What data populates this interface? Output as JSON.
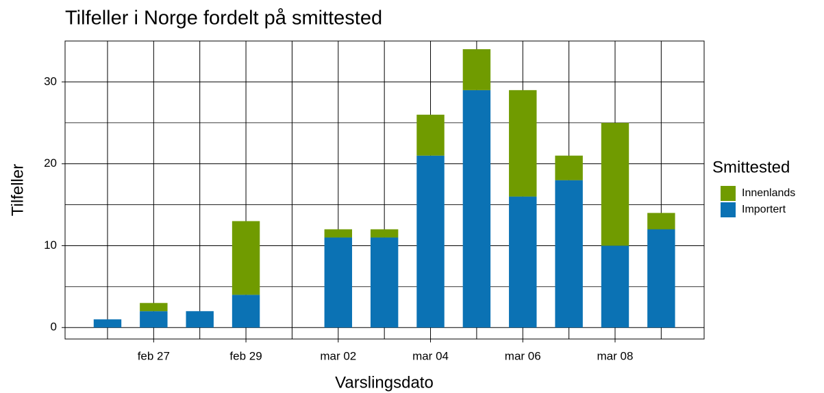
{
  "chart_data": {
    "type": "stacked_bar",
    "title": "Tilfeller i Norge fordelt på smittested",
    "x_label": "Varslingsdato",
    "y_label": "Tilfeller",
    "legend_title": "Smittested",
    "legend_position": "right",
    "categories": [
      null,
      "feb 27",
      null,
      "feb 29",
      null,
      "mar 02",
      null,
      "mar 04",
      null,
      "mar 06",
      null,
      "mar 08",
      null
    ],
    "series": [
      {
        "name": "Importert",
        "color": "#0b72b4",
        "values": [
          1,
          2,
          2,
          4,
          null,
          11,
          11,
          21,
          29,
          16,
          18,
          10,
          12
        ]
      },
      {
        "name": "Innenlands",
        "color": "#709b00",
        "values": [
          null,
          1,
          null,
          9,
          null,
          1,
          1,
          5,
          5,
          13,
          3,
          15,
          2
        ]
      }
    ],
    "ylim": [
      -1.4,
      35
    ],
    "yticks": [
      0,
      10,
      20,
      30
    ],
    "yminor": [
      5,
      15,
      25
    ],
    "grid": true
  }
}
